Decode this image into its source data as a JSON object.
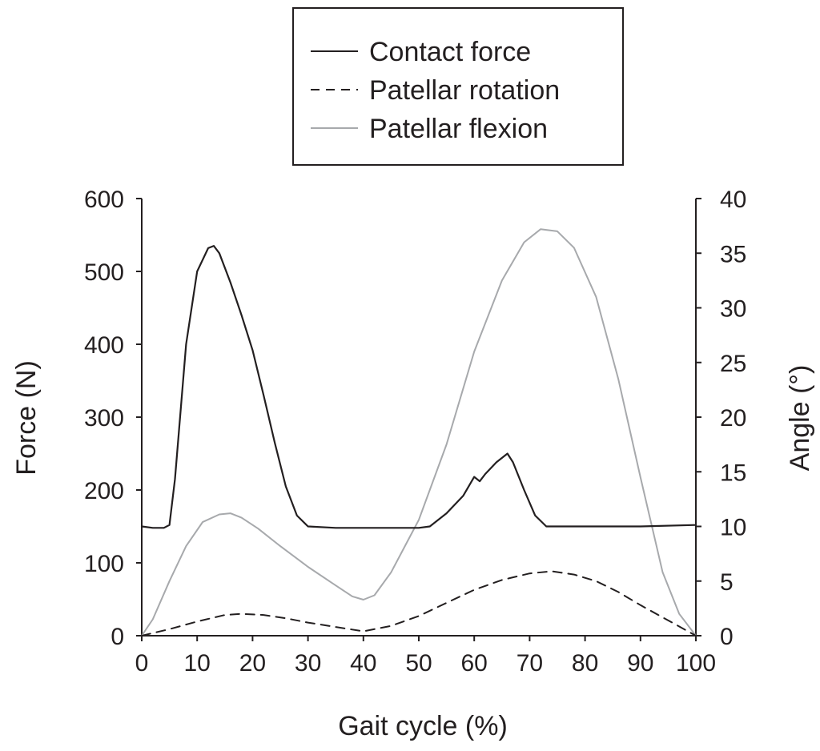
{
  "chart_data": {
    "type": "line",
    "xlabel": "Gait cycle (%)",
    "ylabel_left": "Force (N)",
    "ylabel_right": "Angle (°)",
    "xlim": [
      0,
      100
    ],
    "ylim_left": [
      0,
      600
    ],
    "ylim_right": [
      0,
      40
    ],
    "x_ticks": [
      "0",
      "10",
      "20",
      "30",
      "40",
      "50",
      "60",
      "70",
      "80",
      "90",
      "100"
    ],
    "y_left_ticks": [
      "0",
      "100",
      "200",
      "300",
      "400",
      "500",
      "600"
    ],
    "y_right_ticks": [
      "0",
      "5",
      "10",
      "15",
      "20",
      "25",
      "30",
      "35",
      "40"
    ],
    "grid": false,
    "legend_position": "top",
    "colors": {
      "contact_force": "#231f20",
      "patellar_rotation": "#231f20",
      "patellar_flexion": "#a7a9ac",
      "axis": "#231f20"
    },
    "series": [
      {
        "name": "Contact force",
        "axis": "left",
        "style": "solid",
        "x": [
          0,
          2,
          4,
          5,
          6,
          8,
          10,
          12,
          13,
          14,
          16,
          18,
          20,
          22,
          24,
          26,
          28,
          30,
          35,
          40,
          45,
          50,
          52,
          55,
          58,
          60,
          61,
          62,
          64,
          66,
          67,
          69,
          71,
          73,
          80,
          90,
          100
        ],
        "y": [
          150,
          148,
          148,
          152,
          215,
          400,
          500,
          532,
          535,
          525,
          485,
          440,
          392,
          330,
          265,
          205,
          165,
          150,
          148,
          148,
          148,
          148,
          150,
          168,
          192,
          218,
          212,
          222,
          238,
          250,
          238,
          200,
          165,
          150,
          150,
          150,
          152
        ]
      },
      {
        "name": "Patellar rotation",
        "axis": "right",
        "style": "dashed",
        "x": [
          0,
          5,
          10,
          15,
          18,
          22,
          26,
          30,
          35,
          40,
          45,
          50,
          55,
          60,
          65,
          70,
          74,
          78,
          82,
          86,
          90,
          95,
          100
        ],
        "y": [
          0,
          0.6,
          1.3,
          1.9,
          2.0,
          1.9,
          1.6,
          1.2,
          0.8,
          0.4,
          0.9,
          1.8,
          3.0,
          4.2,
          5.1,
          5.7,
          5.9,
          5.6,
          5.0,
          4.0,
          2.8,
          1.4,
          0
        ]
      },
      {
        "name": "Patellar flexion",
        "axis": "right",
        "style": "solid",
        "x": [
          0,
          2,
          5,
          8,
          11,
          14,
          16,
          18,
          21,
          25,
          30,
          35,
          38,
          40,
          42,
          45,
          50,
          55,
          60,
          65,
          69,
          72,
          75,
          78,
          82,
          86,
          90,
          94,
          97,
          100
        ],
        "y": [
          0,
          1.5,
          5,
          8.2,
          10.4,
          11.1,
          11.2,
          10.8,
          9.8,
          8.2,
          6.3,
          4.6,
          3.6,
          3.3,
          3.7,
          5.8,
          10.6,
          17.5,
          26,
          32.5,
          36,
          37.2,
          37,
          35.5,
          31,
          23.5,
          14.5,
          5.8,
          2,
          0
        ]
      }
    ]
  }
}
